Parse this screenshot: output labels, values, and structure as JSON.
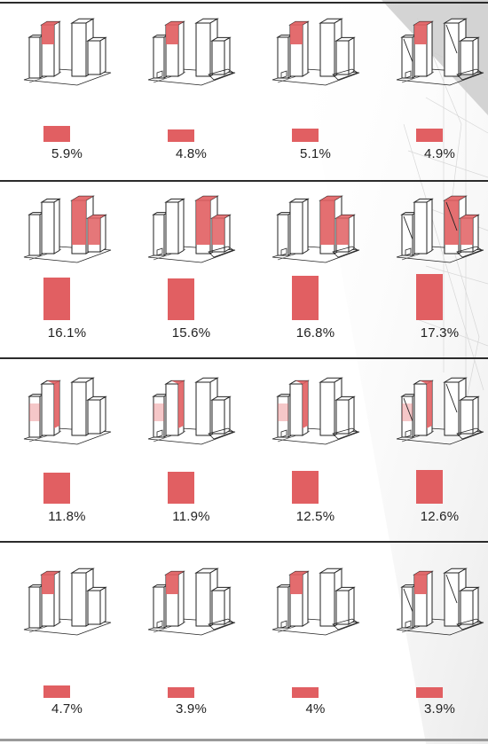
{
  "colors": {
    "accent": "#e15f62",
    "outline": "#222222",
    "divider": "#2b2b2b"
  },
  "rows": [
    {
      "cells": [
        {
          "label": "5.9%",
          "value": 5.9
        },
        {
          "label": "4.8%",
          "value": 4.8
        },
        {
          "label": "5.1%",
          "value": 5.1
        },
        {
          "label": "4.9%",
          "value": 4.9
        }
      ]
    },
    {
      "cells": [
        {
          "label": "16.1%",
          "value": 16.1
        },
        {
          "label": "15.6%",
          "value": 15.6
        },
        {
          "label": "16.8%",
          "value": 16.8
        },
        {
          "label": "17.3%",
          "value": 17.3
        }
      ]
    },
    {
      "cells": [
        {
          "label": "11.8%",
          "value": 11.8
        },
        {
          "label": "11.9%",
          "value": 11.9
        },
        {
          "label": "12.5%",
          "value": 12.5
        },
        {
          "label": "12.6%",
          "value": 12.6
        }
      ]
    },
    {
      "cells": [
        {
          "label": "4.7%",
          "value": 4.7
        },
        {
          "label": "3.9%",
          "value": 3.9
        },
        {
          "label": "4%",
          "value": 4
        },
        {
          "label": "3.9%",
          "value": 3.9
        }
      ]
    }
  ]
}
